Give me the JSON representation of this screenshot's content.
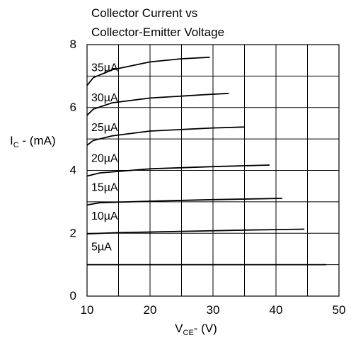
{
  "chart_data": {
    "type": "line",
    "title": [
      "Collector Current vs",
      "Collector-Emitter Voltage"
    ],
    "xlabel": {
      "main": "V",
      "sub": "CE",
      "rest": "- (V)"
    },
    "ylabel": {
      "main": "I",
      "sub": "C",
      "rest": " - (mA)"
    },
    "xlim": [
      10,
      50
    ],
    "ylim": [
      0,
      8
    ],
    "x_ticks": [
      10,
      20,
      30,
      40,
      50
    ],
    "y_ticks": [
      0,
      2,
      4,
      6,
      8
    ],
    "grid": true,
    "legend": "inline labels",
    "series": [
      {
        "name": "5µA",
        "x": [
          10,
          20,
          30,
          40,
          48
        ],
        "y": [
          1.0,
          1.0,
          1.0,
          1.0,
          1.0
        ]
      },
      {
        "name": "10µA",
        "x": [
          10,
          15,
          25,
          35,
          44.5
        ],
        "y": [
          1.98,
          2.02,
          2.06,
          2.1,
          2.13
        ]
      },
      {
        "name": "15µA",
        "x": [
          10,
          12,
          20,
          30,
          41
        ],
        "y": [
          2.9,
          2.97,
          3.02,
          3.07,
          3.11
        ]
      },
      {
        "name": "20µA",
        "x": [
          10,
          12,
          20,
          30,
          39
        ],
        "y": [
          3.82,
          3.92,
          4.05,
          4.12,
          4.17
        ]
      },
      {
        "name": "25µA",
        "x": [
          10,
          11,
          14,
          20,
          30,
          35
        ],
        "y": [
          4.8,
          4.95,
          5.1,
          5.25,
          5.35,
          5.38
        ]
      },
      {
        "name": "30µA",
        "x": [
          10,
          11,
          14,
          20,
          28,
          32.5
        ],
        "y": [
          5.75,
          5.95,
          6.15,
          6.3,
          6.4,
          6.45
        ]
      },
      {
        "name": "35µA",
        "x": [
          10,
          11,
          14,
          20,
          25,
          29.5
        ],
        "y": [
          6.7,
          6.95,
          7.2,
          7.45,
          7.55,
          7.6
        ]
      }
    ]
  }
}
